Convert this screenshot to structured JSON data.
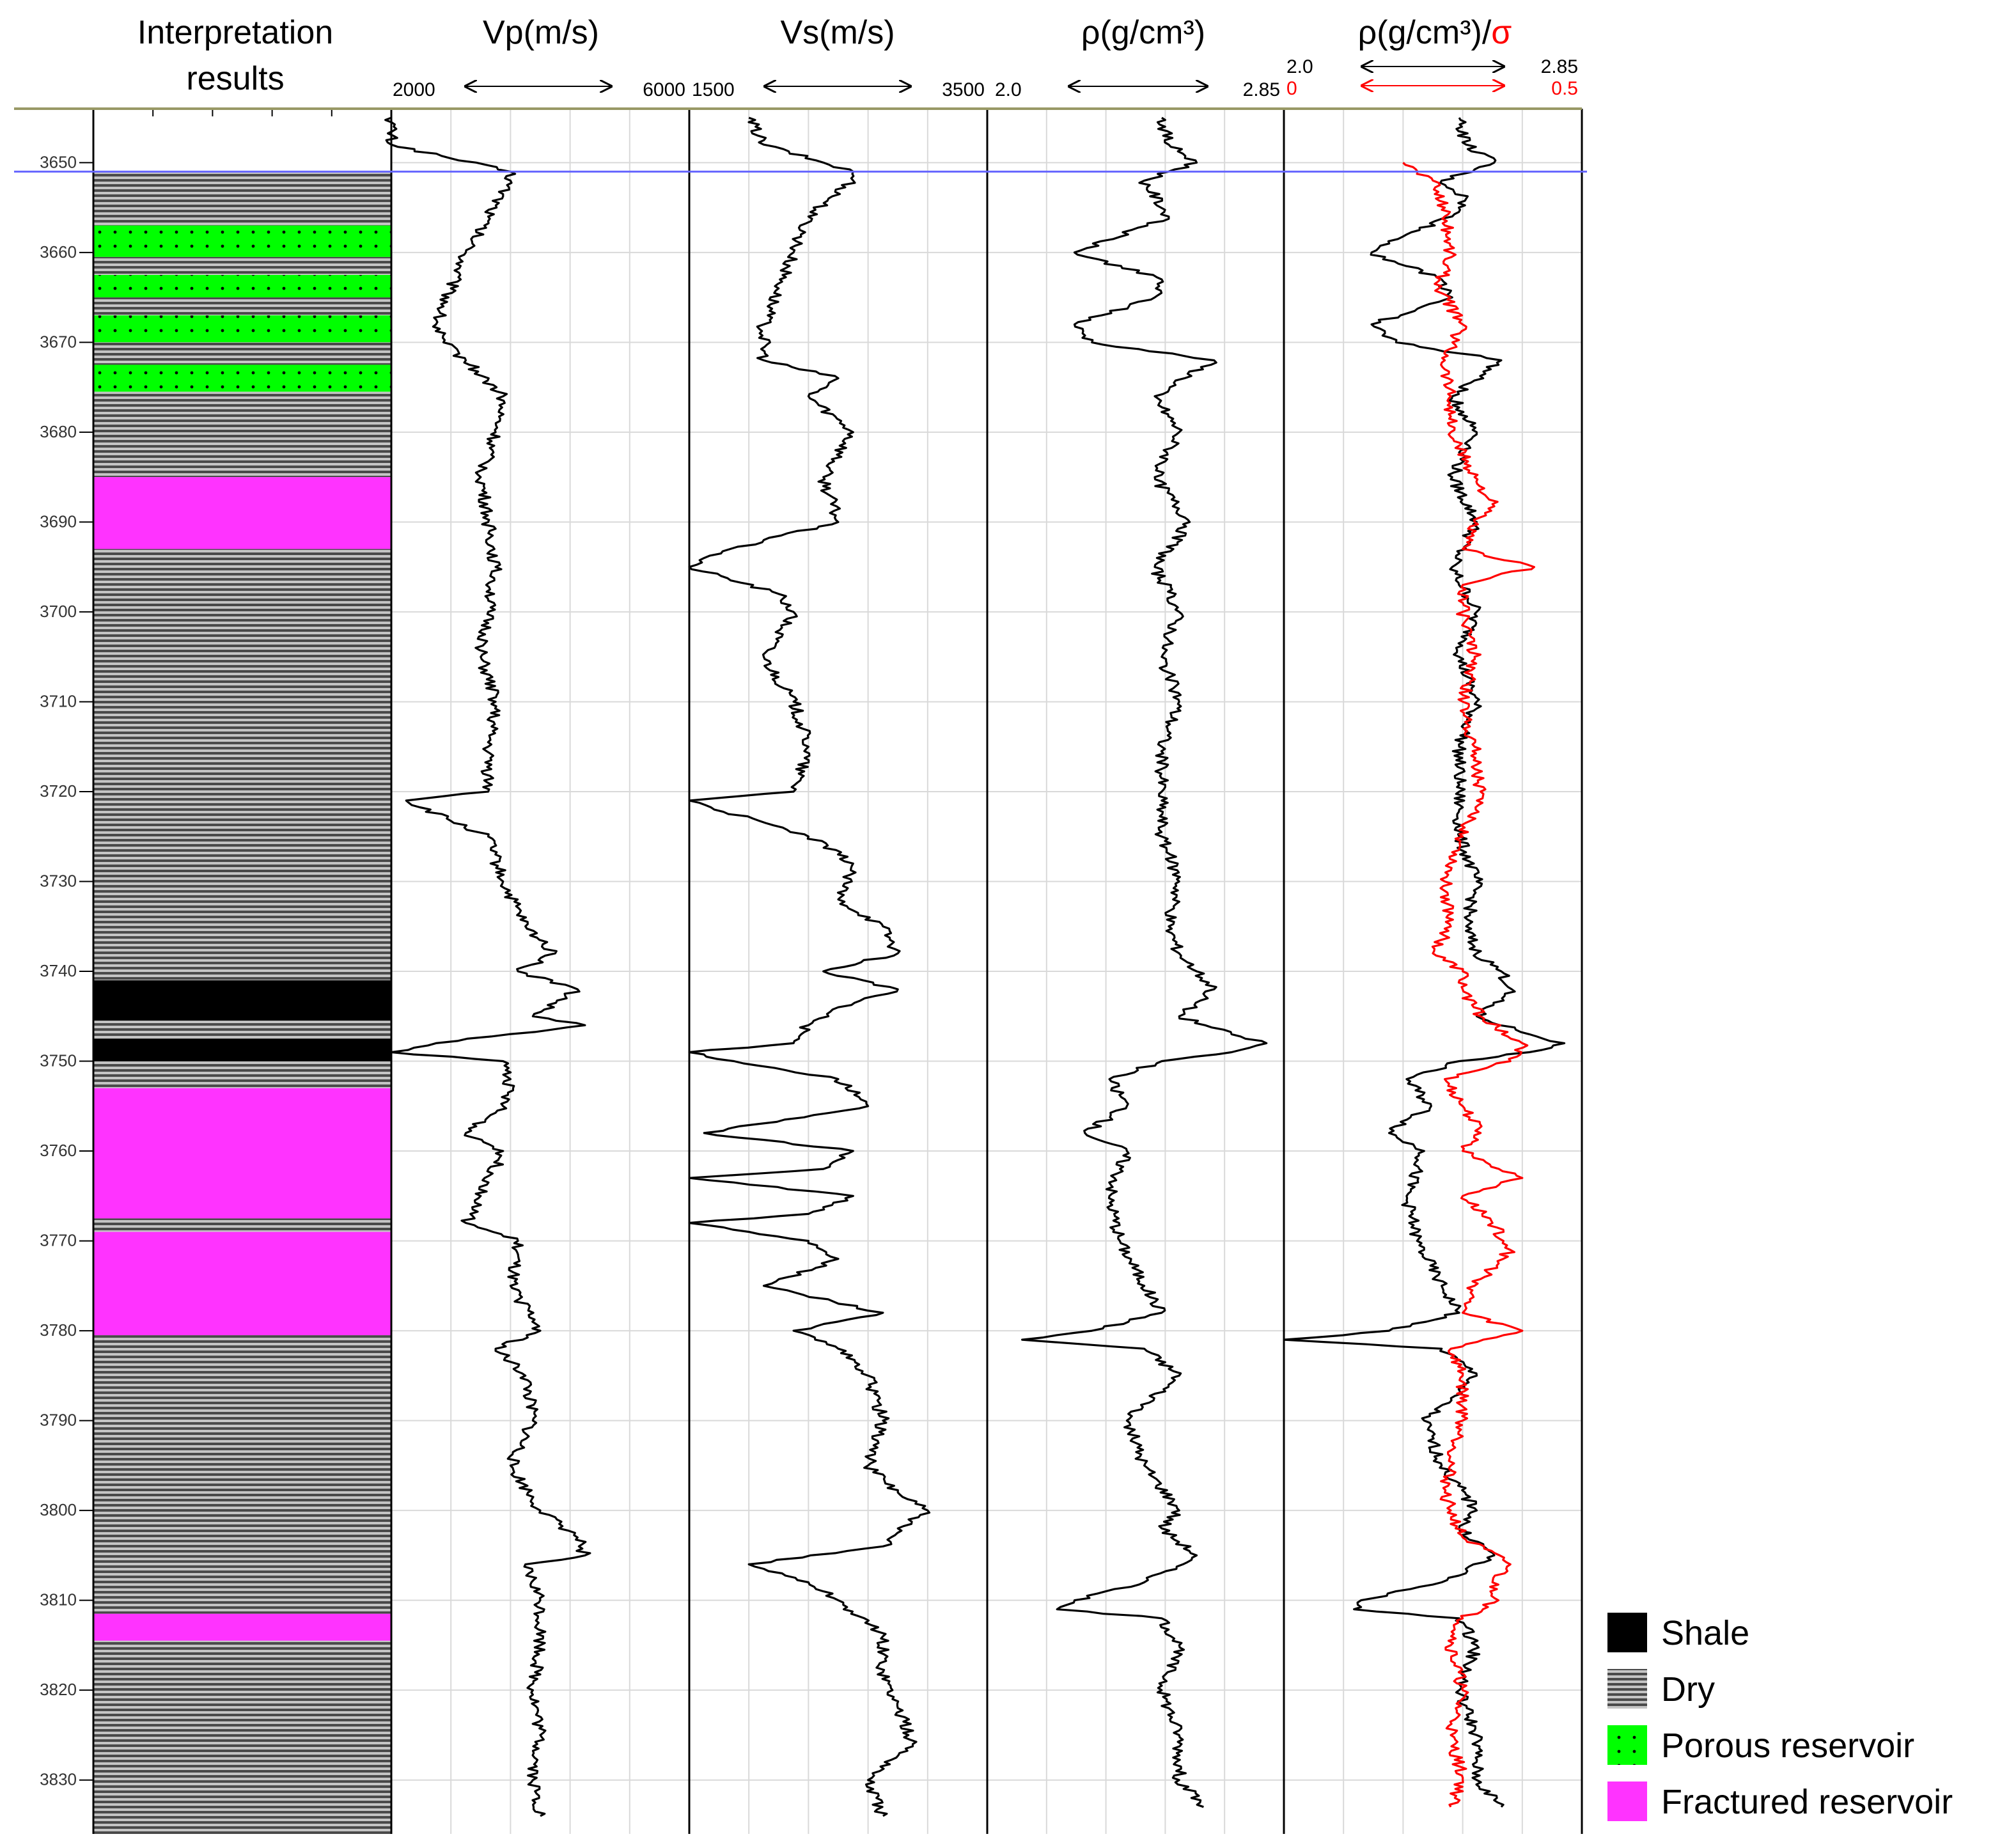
{
  "chart_data": {
    "type": "line",
    "title": "",
    "depth_axis": {
      "ticks": [
        3650,
        3660,
        3670,
        3680,
        3690,
        3700,
        3710,
        3720,
        3730,
        3740,
        3750,
        3760,
        3770,
        3780,
        3790,
        3800,
        3810,
        3820,
        3830
      ],
      "range": [
        3644,
        3836
      ]
    },
    "tracks": [
      {
        "id": "interp",
        "header": "Interpretation results"
      },
      {
        "id": "vp",
        "header": "Vp(m/s)",
        "scale_min": "2000",
        "scale_max": "6000",
        "range": [
          2000,
          6000
        ]
      },
      {
        "id": "vs",
        "header": "Vs(m/s)",
        "scale_min": "1500",
        "scale_max": "3500",
        "range": [
          1500,
          3500
        ]
      },
      {
        "id": "rho",
        "header": "ρ(g/cm³)",
        "scale_min": "2.0",
        "scale_max": "2.85",
        "range": [
          2.0,
          2.85
        ]
      },
      {
        "id": "rhosig",
        "header_a": "ρ(g/cm³)/",
        "header_b": "σ",
        "scale_min": "2.0",
        "scale_max": "2.85",
        "range": [
          2.0,
          2.85
        ],
        "scale2_min": "0",
        "scale2_max": "0.5",
        "range2": [
          0,
          0.5
        ]
      }
    ],
    "marker_depth": 3651,
    "interpretation": [
      {
        "top": 3651,
        "bottom": 3657,
        "class": "dry"
      },
      {
        "top": 3657,
        "bottom": 3660.5,
        "class": "porous"
      },
      {
        "top": 3660.5,
        "bottom": 3662.5,
        "class": "dry"
      },
      {
        "top": 3662.5,
        "bottom": 3665,
        "class": "porous"
      },
      {
        "top": 3665,
        "bottom": 3667,
        "class": "dry"
      },
      {
        "top": 3667,
        "bottom": 3670,
        "class": "porous"
      },
      {
        "top": 3670,
        "bottom": 3672.5,
        "class": "dry"
      },
      {
        "top": 3672.5,
        "bottom": 3675.5,
        "class": "porous"
      },
      {
        "top": 3675.5,
        "bottom": 3685,
        "class": "dry"
      },
      {
        "top": 3685,
        "bottom": 3693,
        "class": "fractured"
      },
      {
        "top": 3693,
        "bottom": 3741,
        "class": "dry"
      },
      {
        "top": 3741,
        "bottom": 3745.5,
        "class": "shale"
      },
      {
        "top": 3745.5,
        "bottom": 3747.5,
        "class": "dry"
      },
      {
        "top": 3747.5,
        "bottom": 3750,
        "class": "shale"
      },
      {
        "top": 3750,
        "bottom": 3753,
        "class": "dry"
      },
      {
        "top": 3753,
        "bottom": 3767.5,
        "class": "fractured"
      },
      {
        "top": 3767.5,
        "bottom": 3769,
        "class": "dry"
      },
      {
        "top": 3769,
        "bottom": 3780.5,
        "class": "fractured"
      },
      {
        "top": 3780.5,
        "bottom": 3811.5,
        "class": "dry"
      },
      {
        "top": 3811.5,
        "bottom": 3814.5,
        "class": "fractured"
      },
      {
        "top": 3814.5,
        "bottom": 3836,
        "class": "dry"
      }
    ],
    "series": [
      {
        "track": "vp",
        "color": "#000000",
        "depth": [
          3645,
          3648,
          3651,
          3652,
          3656,
          3660,
          3664,
          3668,
          3670,
          3672,
          3676,
          3680,
          3685,
          3690,
          3695,
          3700,
          3705,
          3710,
          3715,
          3720,
          3721,
          3725,
          3730,
          3735,
          3738,
          3740,
          3742,
          3745,
          3746,
          3748,
          3749,
          3750,
          3752,
          3755,
          3758,
          3760,
          3765,
          3768,
          3770,
          3775,
          3780,
          3782,
          3785,
          3790,
          3795,
          3800,
          3803,
          3805,
          3806,
          3810,
          3815,
          3820,
          3825,
          3830,
          3834
        ],
        "values": [
          2000,
          2000,
          3600,
          3600,
          3300,
          3000,
          2800,
          2600,
          2700,
          3000,
          3500,
          3400,
          3200,
          3300,
          3400,
          3300,
          3200,
          3400,
          3300,
          3300,
          2200,
          3300,
          3500,
          3800,
          4200,
          3700,
          4500,
          3900,
          4600,
          2600,
          2000,
          3500,
          3600,
          3500,
          3000,
          3500,
          3200,
          3000,
          3700,
          3600,
          4000,
          3400,
          3800,
          3900,
          3600,
          4000,
          4500,
          4600,
          3800,
          4000,
          4000,
          3900,
          4000,
          3900,
          4000
        ]
      },
      {
        "track": "vs",
        "color": "#000000",
        "depth": [
          3645,
          3648,
          3651,
          3652,
          3656,
          3660,
          3664,
          3668,
          3672,
          3674,
          3676,
          3680,
          3685,
          3690,
          3692,
          3694,
          3695,
          3698,
          3700,
          3705,
          3710,
          3715,
          3720,
          3721,
          3725,
          3728,
          3732,
          3735,
          3738,
          3740,
          3742,
          3744,
          3746,
          3748,
          3749,
          3750,
          3752,
          3755,
          3758,
          3760,
          3762,
          3763,
          3765,
          3767,
          3768,
          3770,
          3772,
          3775,
          3778,
          3780,
          3782,
          3785,
          3790,
          3795,
          3798,
          3800,
          3802,
          3804,
          3806,
          3808,
          3810,
          3814,
          3818,
          3822,
          3826,
          3830,
          3834
        ],
        "values": [
          1900,
          2000,
          2600,
          2600,
          2300,
          2200,
          2100,
          2000,
          2000,
          2500,
          2300,
          2600,
          2400,
          2500,
          2000,
          1600,
          1500,
          2100,
          2200,
          2000,
          2200,
          2300,
          2200,
          1500,
          2300,
          2600,
          2500,
          2800,
          2900,
          2400,
          2900,
          2500,
          2300,
          2200,
          1500,
          1800,
          2500,
          2700,
          1600,
          2600,
          2400,
          1500,
          2600,
          2300,
          1500,
          2300,
          2500,
          2000,
          2800,
          2200,
          2500,
          2700,
          2800,
          2700,
          2900,
          3100,
          2900,
          2800,
          1900,
          2300,
          2500,
          2800,
          2800,
          2900,
          3000,
          2700,
          2800
        ]
      },
      {
        "track": "rho",
        "color": "#000000",
        "depth": [
          3645,
          3648,
          3650,
          3652,
          3656,
          3660,
          3663,
          3665,
          3668,
          3670,
          3672,
          3676,
          3680,
          3685,
          3690,
          3695,
          3700,
          3705,
          3710,
          3715,
          3720,
          3725,
          3730,
          3735,
          3738,
          3740,
          3742,
          3745,
          3747,
          3748,
          3749,
          3750,
          3752,
          3755,
          3758,
          3760,
          3765,
          3770,
          3775,
          3778,
          3780,
          3781,
          3782,
          3785,
          3790,
          3795,
          3800,
          3802,
          3805,
          3808,
          3810,
          3811,
          3812,
          3815,
          3820,
          3825,
          3830,
          3833
        ],
        "values": [
          2.5,
          2.52,
          2.6,
          2.45,
          2.52,
          2.25,
          2.5,
          2.48,
          2.25,
          2.3,
          2.65,
          2.48,
          2.55,
          2.48,
          2.58,
          2.48,
          2.55,
          2.5,
          2.55,
          2.5,
          2.5,
          2.5,
          2.55,
          2.52,
          2.55,
          2.6,
          2.65,
          2.55,
          2.7,
          2.8,
          2.7,
          2.5,
          2.35,
          2.4,
          2.28,
          2.4,
          2.35,
          2.38,
          2.45,
          2.5,
          2.3,
          2.1,
          2.45,
          2.55,
          2.4,
          2.45,
          2.55,
          2.5,
          2.6,
          2.45,
          2.25,
          2.2,
          2.5,
          2.55,
          2.5,
          2.55,
          2.55,
          2.62
        ]
      },
      {
        "track": "rhosig",
        "color": "#000000",
        "depth": [
          3645,
          3648,
          3650,
          3652,
          3654,
          3656,
          3658,
          3660,
          3663,
          3665,
          3668,
          3670,
          3672,
          3676,
          3680,
          3685,
          3690,
          3695,
          3700,
          3705,
          3710,
          3715,
          3720,
          3725,
          3730,
          3735,
          3738,
          3740,
          3742,
          3745,
          3747,
          3748,
          3749,
          3750,
          3752,
          3755,
          3758,
          3760,
          3765,
          3770,
          3775,
          3778,
          3780,
          3781,
          3782,
          3785,
          3790,
          3795,
          3800,
          3802,
          3805,
          3808,
          3810,
          3811,
          3812,
          3815,
          3820,
          3825,
          3830,
          3833
        ],
        "values": [
          2.5,
          2.52,
          2.6,
          2.45,
          2.52,
          2.48,
          2.35,
          2.25,
          2.45,
          2.48,
          2.25,
          2.32,
          2.62,
          2.48,
          2.55,
          2.48,
          2.55,
          2.48,
          2.55,
          2.5,
          2.55,
          2.5,
          2.5,
          2.5,
          2.55,
          2.52,
          2.55,
          2.62,
          2.65,
          2.55,
          2.7,
          2.8,
          2.7,
          2.5,
          2.35,
          2.42,
          2.3,
          2.4,
          2.35,
          2.38,
          2.45,
          2.5,
          2.3,
          2.0,
          2.45,
          2.55,
          2.4,
          2.45,
          2.55,
          2.5,
          2.6,
          2.45,
          2.22,
          2.2,
          2.5,
          2.55,
          2.5,
          2.55,
          2.55,
          2.62
        ]
      },
      {
        "track": "rhosig",
        "color": "#ff0000",
        "axis": "secondary",
        "depth": [
          3650,
          3652,
          3655,
          3660,
          3664,
          3668,
          3672,
          3676,
          3680,
          3685,
          3688,
          3690,
          3693,
          3695,
          3697,
          3700,
          3705,
          3710,
          3715,
          3720,
          3725,
          3730,
          3735,
          3738,
          3740,
          3742,
          3745,
          3748,
          3750,
          3752,
          3755,
          3758,
          3760,
          3763,
          3765,
          3768,
          3771,
          3775,
          3778,
          3780,
          3782,
          3785,
          3790,
          3795,
          3798,
          3800,
          3803,
          3806,
          3808,
          3810,
          3812,
          3815,
          3820,
          3825,
          3830,
          3833
        ],
        "values": [
          0.2,
          0.25,
          0.27,
          0.28,
          0.26,
          0.3,
          0.27,
          0.28,
          0.28,
          0.32,
          0.35,
          0.32,
          0.3,
          0.42,
          0.3,
          0.3,
          0.32,
          0.3,
          0.32,
          0.33,
          0.3,
          0.27,
          0.28,
          0.25,
          0.3,
          0.3,
          0.33,
          0.4,
          0.38,
          0.27,
          0.3,
          0.33,
          0.3,
          0.4,
          0.3,
          0.35,
          0.38,
          0.32,
          0.3,
          0.4,
          0.28,
          0.3,
          0.3,
          0.28,
          0.27,
          0.28,
          0.3,
          0.38,
          0.35,
          0.36,
          0.3,
          0.28,
          0.3,
          0.28,
          0.3,
          0.28
        ]
      }
    ],
    "legend": {
      "position": "bottom-right",
      "items": [
        {
          "class": "shale",
          "label": "Shale"
        },
        {
          "class": "dry",
          "label": "Dry"
        },
        {
          "class": "porous",
          "label": "Porous reservoir"
        },
        {
          "class": "fractured",
          "label": "Fractured reservoir"
        }
      ]
    },
    "colors": {
      "shale": "#000000",
      "dry_dark": "#4a4a4a",
      "dry_light": "#bfbfbf",
      "porous": "#00ff00",
      "fractured": "#ff33ff",
      "marker": "#6666ff",
      "frame": "#999966",
      "grid": "#d9d9d9"
    }
  }
}
